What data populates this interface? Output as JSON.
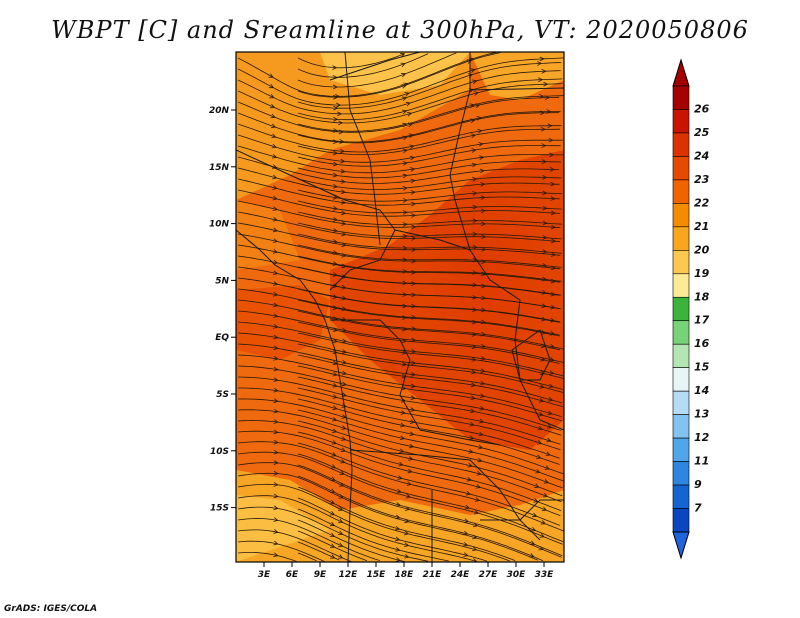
{
  "title": "WBPT [C] and Sreamline at 300hPa, VT: 2020050806",
  "footer": "GrADS: IGES/COLA",
  "map": {
    "lat_labels": [
      "20N",
      "15N",
      "10N",
      "5N",
      "EQ",
      "5S",
      "10S",
      "15S"
    ],
    "lon_labels": [
      "3E",
      "6E",
      "9E",
      "12E",
      "15E",
      "18E",
      "21E",
      "24E",
      "27E",
      "30E",
      "33E"
    ]
  },
  "colorbar": {
    "labels": [
      "26",
      "25",
      "24",
      "23",
      "22",
      "21",
      "20",
      "19",
      "18",
      "17",
      "16",
      "15",
      "14",
      "13",
      "12",
      "11",
      "9",
      "7"
    ],
    "colors": [
      "#a50000",
      "#c81400",
      "#dc3200",
      "#e64a00",
      "#f06400",
      "#f58c00",
      "#faa51e",
      "#fcc850",
      "#fceb96",
      "#3cb43c",
      "#78d278",
      "#b4e6b4",
      "#e6f5f5",
      "#b4dcf5",
      "#82c3f0",
      "#50a5eb",
      "#2d87e1",
      "#1464d2",
      "#0a46be"
    ],
    "top_arrow_color": "#a50000",
    "bottom_arrow_color": "#1e64dc"
  }
}
